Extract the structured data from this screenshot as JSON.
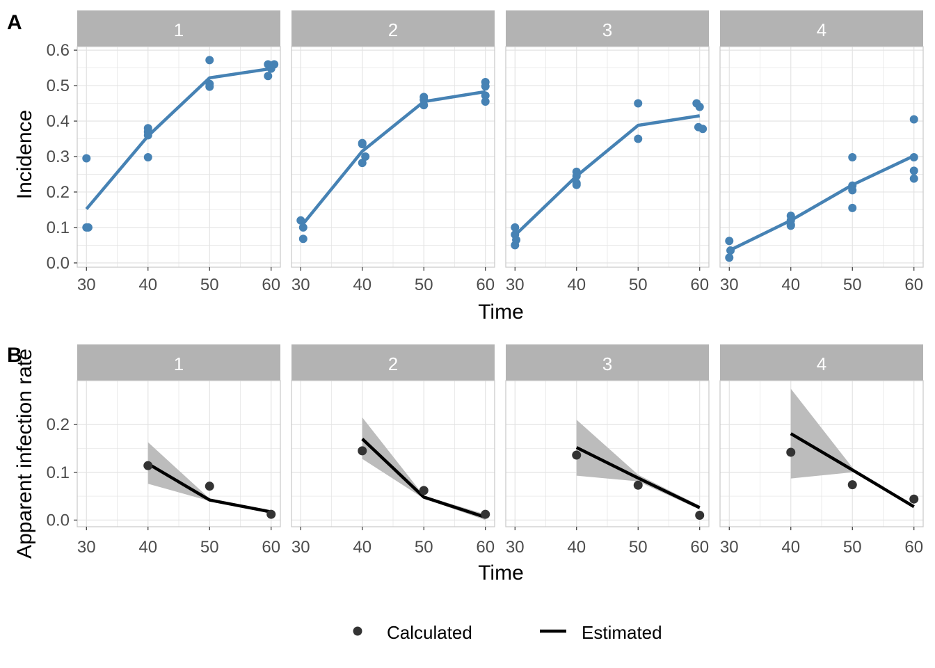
{
  "colors": {
    "incidence": "#4682B4",
    "rate_point": "#333333",
    "rate_line": "#000000",
    "ribbon": "#B8B8B8",
    "strip": "#B3B3B3",
    "grid": "#E3E3E3",
    "panel_border": "#C8C8C8",
    "tick_text": "#4D4D4D"
  },
  "legend": {
    "calculated": "Calculated",
    "estimated": "Estimated"
  },
  "chart_data": [
    {
      "tag": "A",
      "type": "scatter",
      "ylabel": "Incidence",
      "xlabel": "Time",
      "xlim": [
        28.5,
        61.5
      ],
      "ylim": [
        -0.012,
        0.61
      ],
      "xticks": [
        "30",
        "40",
        "50",
        "60"
      ],
      "yticks": [
        "0.0",
        "0.1",
        "0.2",
        "0.3",
        "0.4",
        "0.5",
        "0.6"
      ],
      "grid": true,
      "panels": [
        {
          "strip": "1",
          "points": [
            [
              30,
              0.295
            ],
            [
              30,
              0.1
            ],
            [
              30.3,
              0.1
            ],
            [
              40,
              0.38
            ],
            [
              40,
              0.37
            ],
            [
              40,
              0.36
            ],
            [
              40,
              0.298
            ],
            [
              50,
              0.572
            ],
            [
              50,
              0.505
            ],
            [
              50,
              0.497
            ],
            [
              59.5,
              0.56
            ],
            [
              60.5,
              0.56
            ],
            [
              60,
              0.548
            ],
            [
              59.5,
              0.527
            ]
          ],
          "line": [
            [
              30,
              0.152
            ],
            [
              40,
              0.358
            ],
            [
              50,
              0.522
            ],
            [
              60,
              0.548
            ]
          ]
        },
        {
          "strip": "2",
          "points": [
            [
              30,
              0.12
            ],
            [
              30.4,
              0.1
            ],
            [
              30.4,
              0.068
            ],
            [
              40,
              0.338
            ],
            [
              40,
              0.335
            ],
            [
              40,
              0.282
            ],
            [
              40.5,
              0.3
            ],
            [
              50,
              0.468
            ],
            [
              50,
              0.46
            ],
            [
              50,
              0.445
            ],
            [
              60,
              0.51
            ],
            [
              60,
              0.498
            ],
            [
              60,
              0.472
            ],
            [
              60,
              0.455
            ]
          ],
          "line": [
            [
              30,
              0.102
            ],
            [
              40,
              0.315
            ],
            [
              50,
              0.455
            ],
            [
              60,
              0.483
            ]
          ]
        },
        {
          "strip": "3",
          "points": [
            [
              30,
              0.1
            ],
            [
              30,
              0.08
            ],
            [
              30.2,
              0.065
            ],
            [
              30,
              0.05
            ],
            [
              40,
              0.257
            ],
            [
              40,
              0.245
            ],
            [
              40,
              0.225
            ],
            [
              40,
              0.22
            ],
            [
              50,
              0.45
            ],
            [
              50,
              0.35
            ],
            [
              59.5,
              0.45
            ],
            [
              60,
              0.44
            ],
            [
              59.8,
              0.383
            ],
            [
              60.5,
              0.378
            ]
          ],
          "line": [
            [
              30,
              0.078
            ],
            [
              40,
              0.245
            ],
            [
              50,
              0.388
            ],
            [
              60,
              0.415
            ]
          ]
        },
        {
          "strip": "4",
          "points": [
            [
              30,
              0.062
            ],
            [
              30.2,
              0.035
            ],
            [
              30,
              0.015
            ],
            [
              40,
              0.133
            ],
            [
              40,
              0.12
            ],
            [
              40,
              0.108
            ],
            [
              40,
              0.105
            ],
            [
              50,
              0.298
            ],
            [
              50,
              0.218
            ],
            [
              50,
              0.205
            ],
            [
              50,
              0.155
            ],
            [
              60,
              0.405
            ],
            [
              60,
              0.298
            ],
            [
              60,
              0.26
            ],
            [
              60,
              0.238
            ]
          ],
          "line": [
            [
              30,
              0.035
            ],
            [
              40,
              0.12
            ],
            [
              50,
              0.22
            ],
            [
              60,
              0.302
            ]
          ]
        }
      ]
    },
    {
      "tag": "B",
      "type": "line",
      "ylabel": "Apparent infection rate",
      "xlabel": "Time",
      "xlim": [
        28.5,
        61.5
      ],
      "ylim": [
        -0.014,
        0.292
      ],
      "xticks": [
        "30",
        "40",
        "50",
        "60"
      ],
      "yticks": [
        "0.0",
        "0.1",
        "0.2"
      ],
      "grid": true,
      "panels": [
        {
          "strip": "1",
          "points": [
            [
              40,
              0.114
            ],
            [
              50,
              0.071
            ],
            [
              60,
              0.012
            ]
          ],
          "line": [
            [
              40,
              0.118
            ],
            [
              50,
              0.042
            ],
            [
              60,
              0.017
            ]
          ],
          "ribbon_upper": [
            [
              40,
              0.163
            ],
            [
              50,
              0.045
            ],
            [
              60,
              0.02
            ]
          ],
          "ribbon_lower": [
            [
              40,
              0.076
            ],
            [
              50,
              0.04
            ],
            [
              60,
              0.014
            ]
          ]
        },
        {
          "strip": "2",
          "points": [
            [
              40,
              0.145
            ],
            [
              50,
              0.062
            ],
            [
              60,
              0.012
            ]
          ],
          "line": [
            [
              40,
              0.17
            ],
            [
              50,
              0.048
            ],
            [
              60,
              0.006
            ]
          ],
          "ribbon_upper": [
            [
              40,
              0.215
            ],
            [
              50,
              0.051
            ],
            [
              60,
              0.012
            ]
          ],
          "ribbon_lower": [
            [
              40,
              0.128
            ],
            [
              50,
              0.045
            ],
            [
              60,
              0.0
            ]
          ]
        },
        {
          "strip": "3",
          "points": [
            [
              40,
              0.136
            ],
            [
              50,
              0.073
            ],
            [
              60,
              0.01
            ]
          ],
          "line": [
            [
              40,
              0.152
            ],
            [
              50,
              0.088
            ],
            [
              60,
              0.026
            ]
          ],
          "ribbon_upper": [
            [
              40,
              0.21
            ],
            [
              50,
              0.095
            ],
            [
              60,
              0.03
            ]
          ],
          "ribbon_lower": [
            [
              40,
              0.093
            ],
            [
              50,
              0.081
            ],
            [
              60,
              0.022
            ]
          ]
        },
        {
          "strip": "4",
          "points": [
            [
              40,
              0.142
            ],
            [
              50,
              0.074
            ],
            [
              60,
              0.044
            ]
          ],
          "line": [
            [
              40,
              0.181
            ],
            [
              50,
              0.105
            ],
            [
              60,
              0.028
            ]
          ],
          "ribbon_upper": [
            [
              40,
              0.275
            ],
            [
              50,
              0.11
            ]
          ],
          "ribbon_lower": [
            [
              40,
              0.087
            ],
            [
              50,
              0.1
            ]
          ]
        }
      ]
    }
  ]
}
